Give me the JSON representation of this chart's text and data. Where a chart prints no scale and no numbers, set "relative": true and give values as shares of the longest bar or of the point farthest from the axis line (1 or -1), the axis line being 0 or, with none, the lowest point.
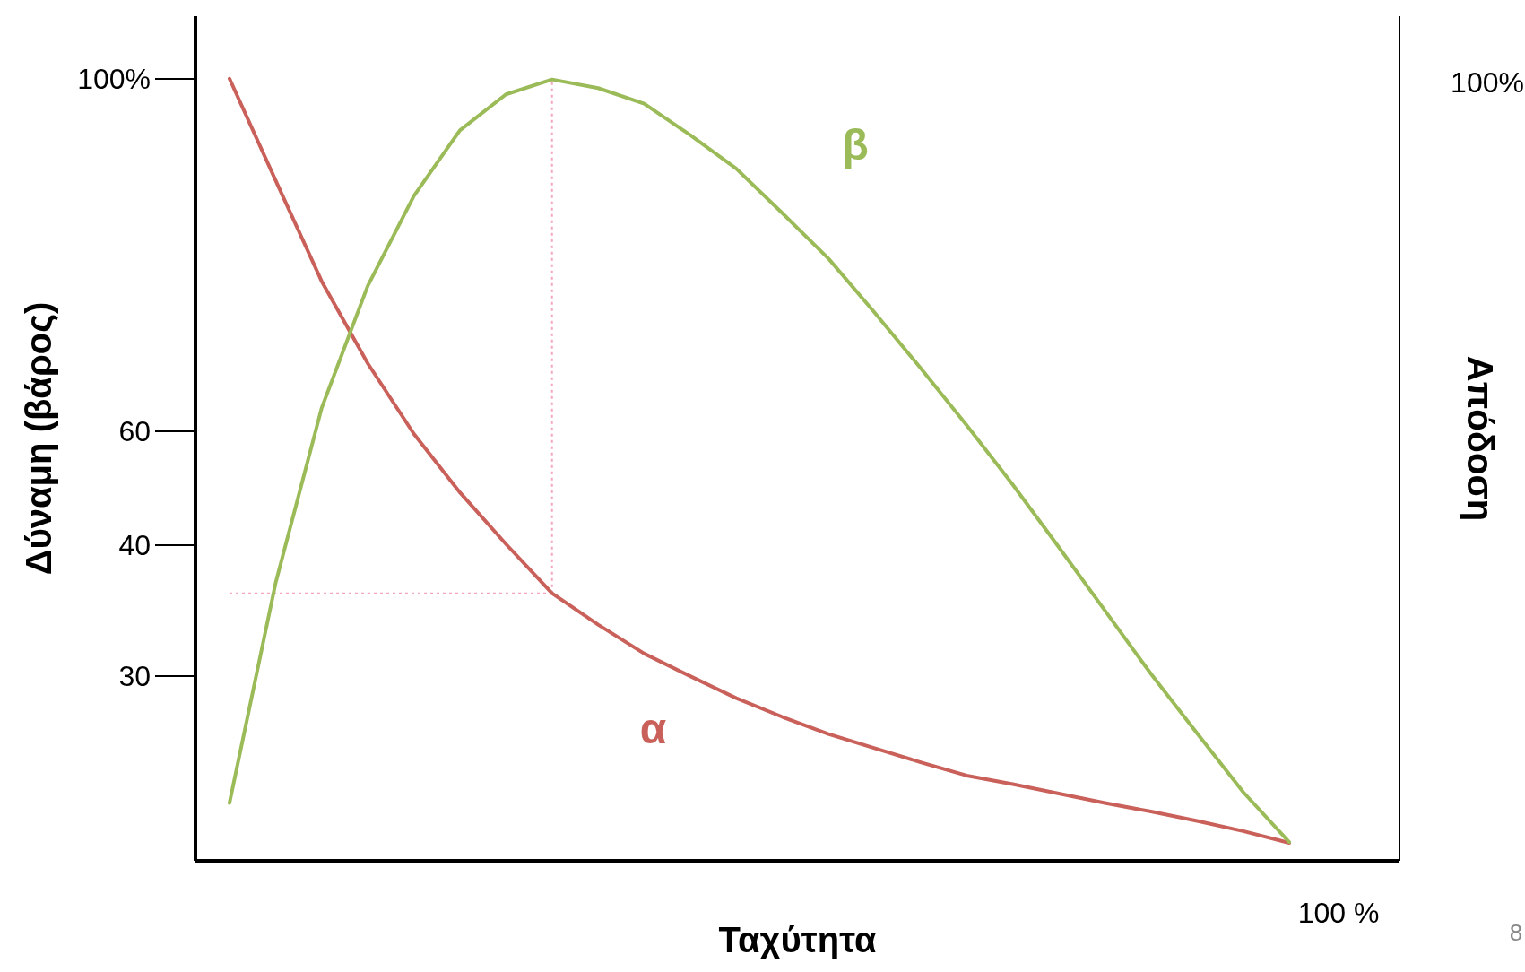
{
  "chart_data": {
    "type": "line",
    "relative": true,
    "xlabel": "Ταχύτητα",
    "ylabel": "Δύναμη (βάρος)",
    "y2label": "Απόδοση",
    "categories": [
      null,
      null,
      null,
      null,
      null,
      null,
      null,
      null,
      null,
      null,
      null,
      null,
      null,
      null,
      null,
      null,
      null,
      null,
      null,
      null,
      null,
      null,
      null,
      null
    ],
    "series": [
      {
        "name": "α",
        "color": "#c9605a",
        "values": [
          1,
          0.87,
          0.741,
          0.636,
          0.546,
          0.471,
          0.405,
          0.342,
          0.302,
          0.265,
          0.236,
          0.208,
          0.184,
          0.162,
          0.144,
          0.126,
          0.109,
          0.098,
          0.086,
          0.074,
          0.063,
          0.051,
          0.038,
          0.023
        ]
      },
      {
        "name": "β",
        "color": "#9bbb59",
        "values": [
          0.074,
          0.355,
          0.579,
          0.735,
          0.85,
          0.934,
          0.98,
          0.999,
          0.988,
          0.968,
          0.928,
          0.885,
          0.828,
          0.77,
          0.701,
          0.63,
          0.557,
          0.481,
          0.401,
          0.32,
          0.239,
          0.163,
          0.088,
          0.024
        ]
      }
    ],
    "ref_lines": [
      {
        "axis": "y",
        "value": 0.342,
        "color": "#f4a6c0",
        "line_style": "dotted"
      },
      {
        "axis": "x",
        "color": "#f4a6c0",
        "line_style": "dotted"
      }
    ],
    "annotations": [
      "100%",
      "60",
      "40",
      "30",
      "100%",
      "100 %",
      "8"
    ]
  }
}
